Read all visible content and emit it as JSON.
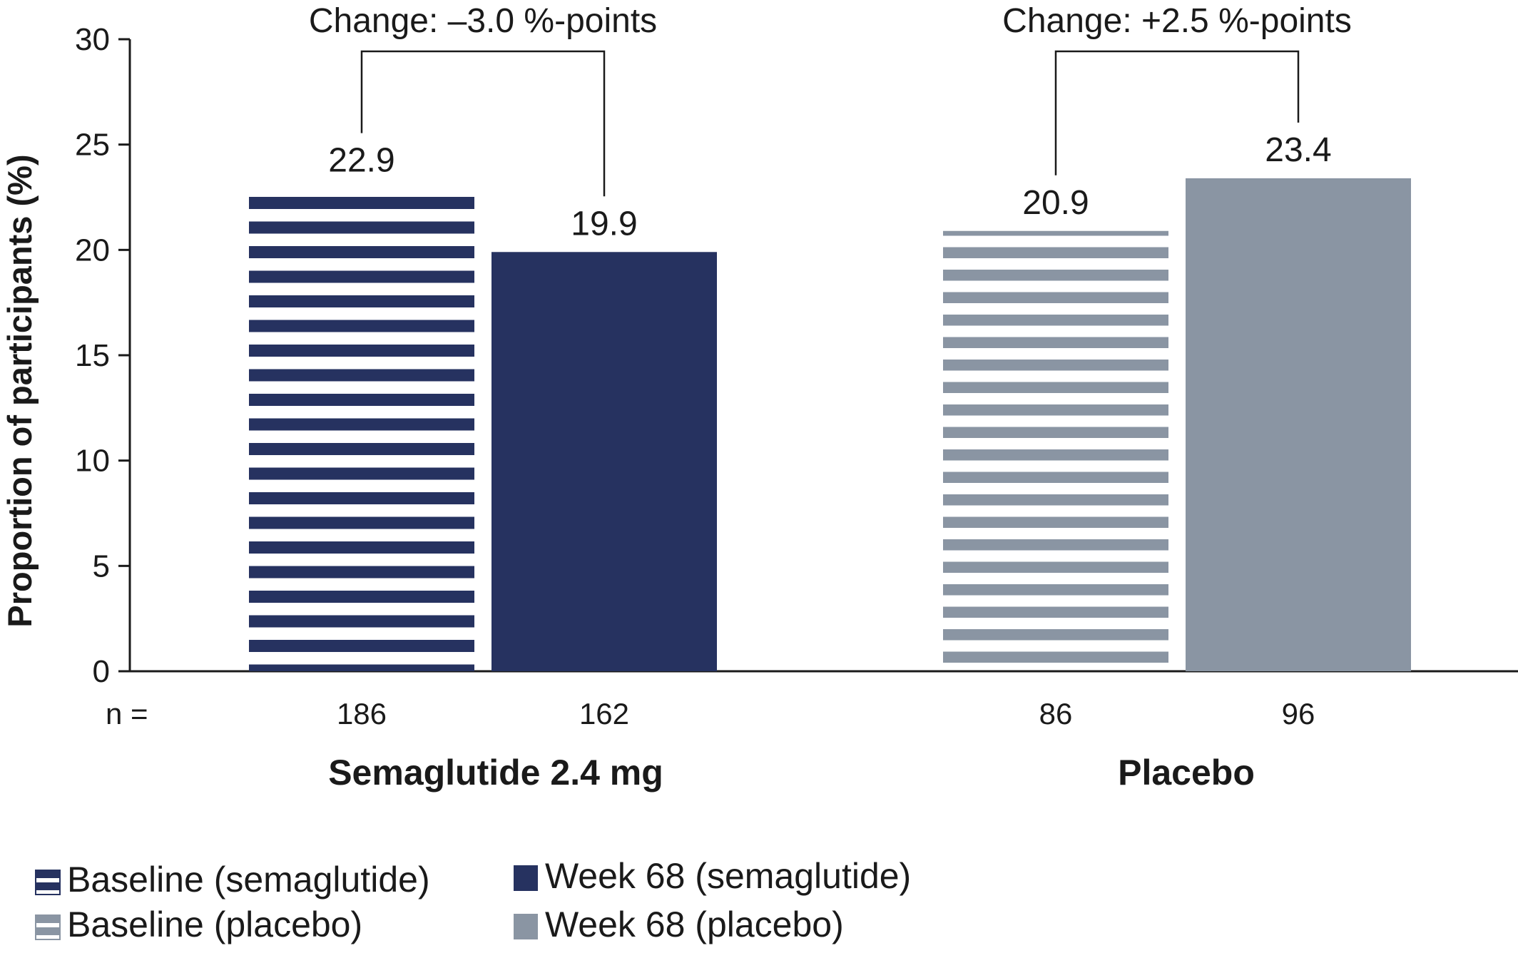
{
  "chart_data": {
    "type": "bar",
    "ylabel": "Proportion of participants (%)",
    "ylim": [
      0,
      30
    ],
    "yticks": [
      0,
      5,
      10,
      15,
      20,
      25,
      30
    ],
    "n_prefix": "n =",
    "groups": [
      {
        "label": "Semaglutide 2.4 mg",
        "change_label": "Change: –3.0 %-points",
        "bars": [
          {
            "series": "Baseline (semaglutide)",
            "value": 22.9,
            "value_label": "22.9",
            "n": "186",
            "color": "#263260",
            "pattern": "striped"
          },
          {
            "series": "Week 68 (semaglutide)",
            "value": 19.9,
            "value_label": "19.9",
            "n": "162",
            "color": "#263260",
            "pattern": "solid"
          }
        ]
      },
      {
        "label": "Placebo",
        "change_label": "Change: +2.5 %-points",
        "bars": [
          {
            "series": "Baseline (placebo)",
            "value": 20.9,
            "value_label": "20.9",
            "n": "86",
            "color": "#8a95a3",
            "pattern": "striped"
          },
          {
            "series": "Week 68 (placebo)",
            "value": 23.4,
            "value_label": "23.4",
            "n": "96",
            "color": "#8a95a3",
            "pattern": "solid"
          }
        ]
      }
    ],
    "legend": [
      {
        "name": "Baseline (semaglutide)",
        "color": "#263260",
        "pattern": "striped"
      },
      {
        "name": "Week 68 (semaglutide)",
        "color": "#263260",
        "pattern": "solid"
      },
      {
        "name": "Baseline (placebo)",
        "color": "#8a95a3",
        "pattern": "striped"
      },
      {
        "name": "Week 68 (placebo)",
        "color": "#8a95a3",
        "pattern": "solid"
      }
    ],
    "legend_position": "bottom-left",
    "grid": false
  }
}
